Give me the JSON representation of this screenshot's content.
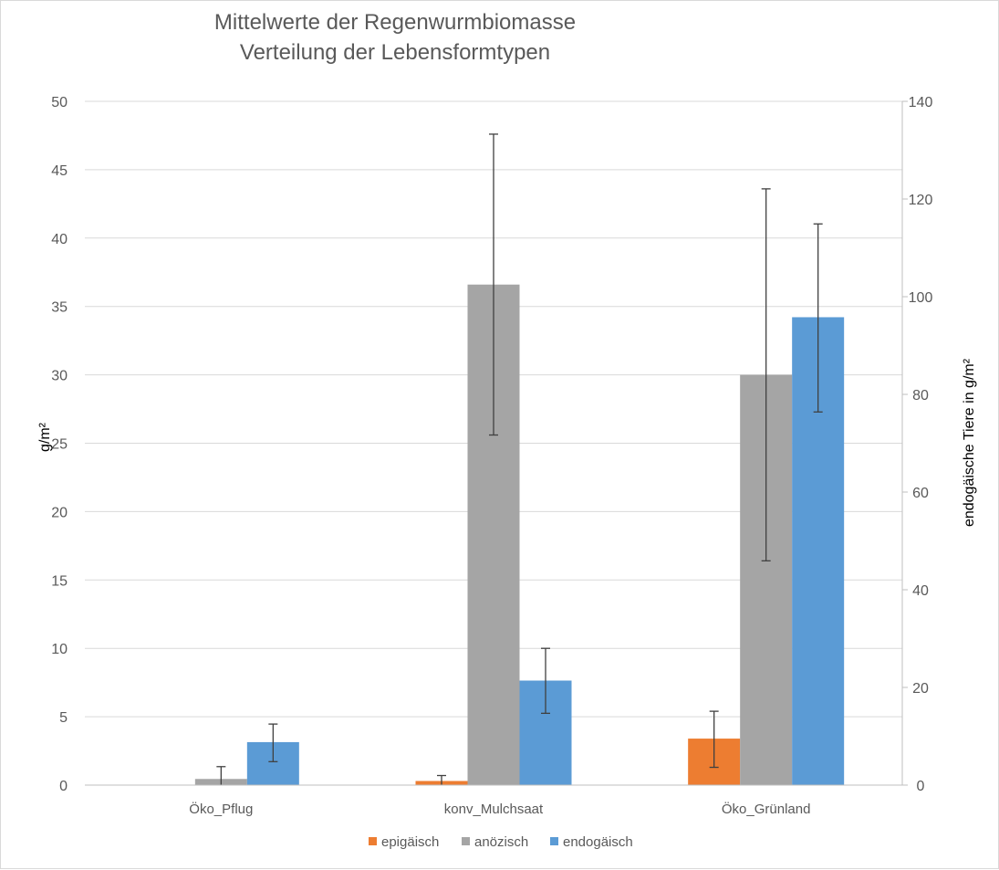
{
  "chart_data": {
    "type": "bar",
    "title": "Mittelwerte der Regenwurmbiomasse",
    "subtitle": "Verteilung der Lebensformtypen",
    "categories": [
      "Öko_Pflug",
      "konv_Mulchsaat",
      "Öko_Grünland"
    ],
    "ylabel": "g/m²",
    "ylabel_right": "endogäische Tiere in g/m²",
    "ylim": [
      0,
      50
    ],
    "yticks": [
      "0",
      "5",
      "10",
      "15",
      "20",
      "25",
      "30",
      "35",
      "40",
      "45",
      "50"
    ],
    "ylim_right": [
      0,
      140
    ],
    "yticks_right": [
      "0",
      "20",
      "40",
      "60",
      "80",
      "100",
      "120",
      "140"
    ],
    "grid": true,
    "legend_position": "bottom",
    "series": [
      {
        "name": "epigäisch",
        "color": "#ed7d31",
        "axis": "left",
        "values": [
          0,
          0.3,
          3.4
        ],
        "error_low": [
          0,
          0,
          1.3
        ],
        "error_high": [
          0,
          0.7,
          5.4
        ]
      },
      {
        "name": "anözisch",
        "color": "#a5a5a5",
        "axis": "left",
        "values": [
          0.45,
          36.6,
          30.0
        ],
        "error_low": [
          0,
          25.6,
          16.4
        ],
        "error_high": [
          1.35,
          47.6,
          43.6
        ]
      },
      {
        "name": "endogäisch",
        "color": "#5b9bd5",
        "axis": "right",
        "values": [
          8.8,
          21.4,
          95.8
        ],
        "error_low": [
          4.8,
          14.7,
          76.4
        ],
        "error_high": [
          12.5,
          28.0,
          114.9
        ]
      }
    ]
  }
}
